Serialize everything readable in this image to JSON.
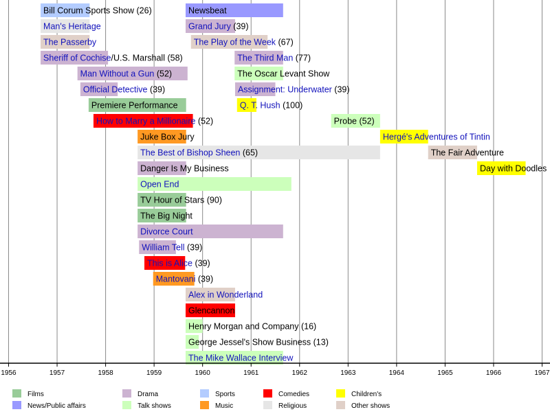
{
  "chart_data": {
    "type": "timeline",
    "xlim": [
      1956,
      1967
    ],
    "x_ticks": [
      "1956",
      "1957",
      "1958",
      "1959",
      "1960",
      "1961",
      "1962",
      "1963",
      "1964",
      "1965",
      "1966",
      "1967"
    ],
    "grid": true,
    "legend_position": "bottom",
    "categories": {
      "films": {
        "label": "Films",
        "color": "#99cc99"
      },
      "news": {
        "label": "News/Public affairs",
        "color": "#9999ff"
      },
      "drama": {
        "label": "Drama",
        "color": "#ccb3d1"
      },
      "talk": {
        "label": "Talk shows",
        "color": "#ccffbb"
      },
      "sports": {
        "label": "Sports",
        "color": "#b3ccff"
      },
      "music": {
        "label": "Music",
        "color": "#ff9922"
      },
      "comedies": {
        "label": "Comedies",
        "color": "#ff0000"
      },
      "religious": {
        "label": "Religious",
        "color": "#e6e6e6"
      },
      "childrens": {
        "label": "Children's",
        "color": "#ffff00"
      },
      "other": {
        "label": "Other shows",
        "color": "#e0d0c8"
      }
    },
    "legend_order": [
      "films",
      "news",
      "drama",
      "talk",
      "sports",
      "music",
      "comedies",
      "religious",
      "childrens",
      "other"
    ],
    "link_color": "#1111bb",
    "rows": [
      [
        {
          "start": 1956.66,
          "end": 1957.67,
          "cat": "sports",
          "link": "",
          "rest": "Bill Corum Sports Show (26)"
        },
        {
          "start": 1959.65,
          "end": 1961.66,
          "cat": "news",
          "link": "",
          "rest": "Newsbeat"
        }
      ],
      [
        {
          "start": 1956.66,
          "end": 1957.67,
          "cat": "religious",
          "link": "Man's Heritage",
          "rest": ""
        },
        {
          "start": 1959.65,
          "end": 1960.67,
          "cat": "drama",
          "link": "Grand Jury",
          "rest": " (39)"
        }
      ],
      [
        {
          "start": 1956.66,
          "end": 1957.67,
          "cat": "other",
          "link": "The Passerby",
          "rest": ""
        },
        {
          "start": 1959.76,
          "end": 1961.34,
          "cat": "other",
          "link": "The Play of the Week",
          "rest": " (67)"
        }
      ],
      [
        {
          "start": 1956.66,
          "end": 1958.05,
          "cat": "drama",
          "link": "Sheriff of Cochise",
          "rest": "/U.S. Marshall (58)"
        },
        {
          "start": 1960.66,
          "end": 1961.66,
          "cat": "drama",
          "link": "The Third Man",
          "rest": " (77)"
        }
      ],
      [
        {
          "start": 1957.42,
          "end": 1959.69,
          "cat": "drama",
          "link": "Man Without a Gun",
          "rest": " (52)"
        },
        {
          "start": 1960.66,
          "end": 1961.66,
          "cat": "talk",
          "link": "",
          "rest": "The Oscar Levant Show"
        }
      ],
      [
        {
          "start": 1957.48,
          "end": 1958.25,
          "cat": "drama",
          "link": "Official Detective",
          "rest": " (39)"
        },
        {
          "start": 1960.67,
          "end": 1961.5,
          "cat": "drama",
          "link": "Assignment: Underwater",
          "rest": " (39)"
        }
      ],
      [
        {
          "start": 1957.65,
          "end": 1959.66,
          "cat": "films",
          "link": "",
          "rest": "Premiere Performance"
        },
        {
          "start": 1960.71,
          "end": 1961.11,
          "cat": "childrens",
          "link": "Q. T. Hush",
          "rest": " (100)"
        }
      ],
      [
        {
          "start": 1957.75,
          "end": 1959.8,
          "cat": "comedies",
          "link": "How to Marry a Millionaire",
          "rest": " (52)"
        },
        {
          "start": 1962.65,
          "end": 1963.66,
          "cat": "talk",
          "link": "",
          "rest": "Probe (52)"
        }
      ],
      [
        {
          "start": 1958.66,
          "end": 1959.66,
          "cat": "music",
          "link": "",
          "rest": "Juke Box Jury"
        },
        {
          "start": 1963.66,
          "end": 1964.65,
          "cat": "childrens",
          "link": "Hergé's Adventures of Tintin",
          "rest": ""
        }
      ],
      [
        {
          "start": 1958.66,
          "end": 1963.66,
          "cat": "religious",
          "link": "The Best of Bishop Sheen",
          "rest": " (65)"
        },
        {
          "start": 1964.65,
          "end": 1965.66,
          "cat": "other",
          "link": "",
          "rest": "The Fair Adventure"
        }
      ],
      [
        {
          "start": 1958.66,
          "end": 1959.66,
          "cat": "drama",
          "link": "",
          "rest": "Danger Is My Business"
        },
        {
          "start": 1965.66,
          "end": 1966.66,
          "cat": "childrens",
          "link": "",
          "rest": "Day with Doodles"
        }
      ],
      [
        {
          "start": 1958.66,
          "end": 1961.83,
          "cat": "talk",
          "link": "Open End",
          "rest": ""
        }
      ],
      [
        {
          "start": 1958.66,
          "end": 1959.66,
          "cat": "films",
          "link": "",
          "rest": "TV Hour of Stars (90)"
        }
      ],
      [
        {
          "start": 1958.66,
          "end": 1959.66,
          "cat": "films",
          "link": "",
          "rest": "The Big Night"
        }
      ],
      [
        {
          "start": 1958.66,
          "end": 1961.66,
          "cat": "drama",
          "link": "Divorce Court",
          "rest": ""
        }
      ],
      [
        {
          "start": 1958.69,
          "end": 1959.45,
          "cat": "drama",
          "link": "William Tell",
          "rest": " (39)"
        }
      ],
      [
        {
          "start": 1958.8,
          "end": 1959.64,
          "cat": "comedies",
          "link": "This is Alice",
          "rest": " (39)"
        }
      ],
      [
        {
          "start": 1958.98,
          "end": 1959.83,
          "cat": "music",
          "link": "Mantovani",
          "rest": " (39)"
        }
      ],
      [
        {
          "start": 1959.65,
          "end": 1960.67,
          "cat": "other",
          "link": "Alex in Wonderland",
          "rest": ""
        }
      ],
      [
        {
          "start": 1959.65,
          "end": 1960.67,
          "cat": "comedies",
          "link": "",
          "rest": "Glencannon"
        }
      ],
      [
        {
          "start": 1959.65,
          "end": 1960.0,
          "cat": "talk",
          "link": "",
          "rest": "Henry Morgan and Company (16)"
        }
      ],
      [
        {
          "start": 1959.65,
          "end": 1959.92,
          "cat": "talk",
          "link": "",
          "rest": "George Jessel's Show Business (13)"
        }
      ],
      [
        {
          "start": 1959.65,
          "end": 1961.66,
          "cat": "talk",
          "link": "The Mike Wallace Interview",
          "rest": ""
        }
      ]
    ]
  }
}
